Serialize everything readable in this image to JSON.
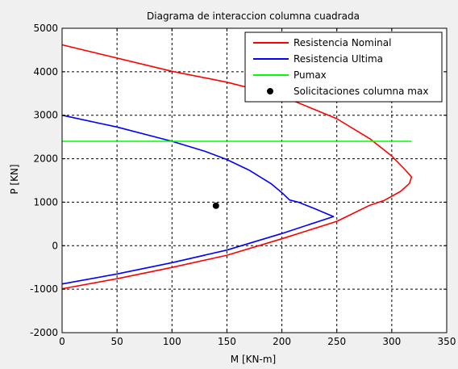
{
  "chart_data": {
    "type": "line",
    "title": "Diagrama de interaccion columna cuadrada",
    "xlabel": "M [KN-m]",
    "ylabel": "P [KN]",
    "xlim": [
      0,
      350
    ],
    "ylim": [
      -2000,
      5000
    ],
    "x_ticks": [
      0,
      50,
      100,
      150,
      200,
      250,
      300,
      350
    ],
    "y_ticks": [
      -2000,
      -1000,
      0,
      1000,
      2000,
      3000,
      4000,
      5000
    ],
    "x_tick_labels": [
      "0",
      "50",
      "100",
      "150",
      "200",
      "250",
      "300",
      "350"
    ],
    "y_tick_labels": [
      "-2000",
      "-1000",
      "0",
      "1000",
      "2000",
      "3000",
      "4000",
      "5000"
    ],
    "grid": true,
    "legend_position": "top-right",
    "colors": {
      "background": "#f0f0f0",
      "axes": "#ffffff",
      "nominal": "#ff0000",
      "ultima": "#0000ff",
      "pumax": "#00ff00",
      "point": "#000000"
    },
    "series": [
      {
        "name": "Resistencia Nominal",
        "style": "line",
        "color": "#ff0000",
        "points": [
          [
            0,
            4620
          ],
          [
            100,
            4010
          ],
          [
            150,
            3760
          ],
          [
            200,
            3440
          ],
          [
            250,
            2920
          ],
          [
            280,
            2460
          ],
          [
            300,
            2060
          ],
          [
            312,
            1750
          ],
          [
            318,
            1580
          ],
          [
            316,
            1430
          ],
          [
            308,
            1250
          ],
          [
            293,
            1040
          ],
          [
            280,
            930
          ],
          [
            250,
            560
          ],
          [
            200,
            160
          ],
          [
            150,
            -220
          ],
          [
            100,
            -500
          ],
          [
            50,
            -760
          ],
          [
            0,
            -990
          ]
        ]
      },
      {
        "name": "Resistencia Ultima",
        "style": "line",
        "color": "#0000ff",
        "points": [
          [
            0,
            3000
          ],
          [
            50,
            2730
          ],
          [
            100,
            2400
          ],
          [
            130,
            2170
          ],
          [
            150,
            1980
          ],
          [
            170,
            1740
          ],
          [
            190,
            1430
          ],
          [
            200,
            1220
          ],
          [
            207,
            1050
          ],
          [
            215,
            1000
          ],
          [
            230,
            850
          ],
          [
            247,
            670
          ],
          [
            200,
            280
          ],
          [
            150,
            -100
          ],
          [
            100,
            -390
          ],
          [
            50,
            -650
          ],
          [
            0,
            -880
          ]
        ]
      },
      {
        "name": "Pumax",
        "style": "line",
        "color": "#00ff00",
        "points": [
          [
            0,
            2400
          ],
          [
            318,
            2400
          ]
        ]
      },
      {
        "name": "Solicitaciones columna max",
        "style": "marker",
        "color": "#000000",
        "points": [
          [
            140,
            920
          ]
        ]
      }
    ]
  }
}
